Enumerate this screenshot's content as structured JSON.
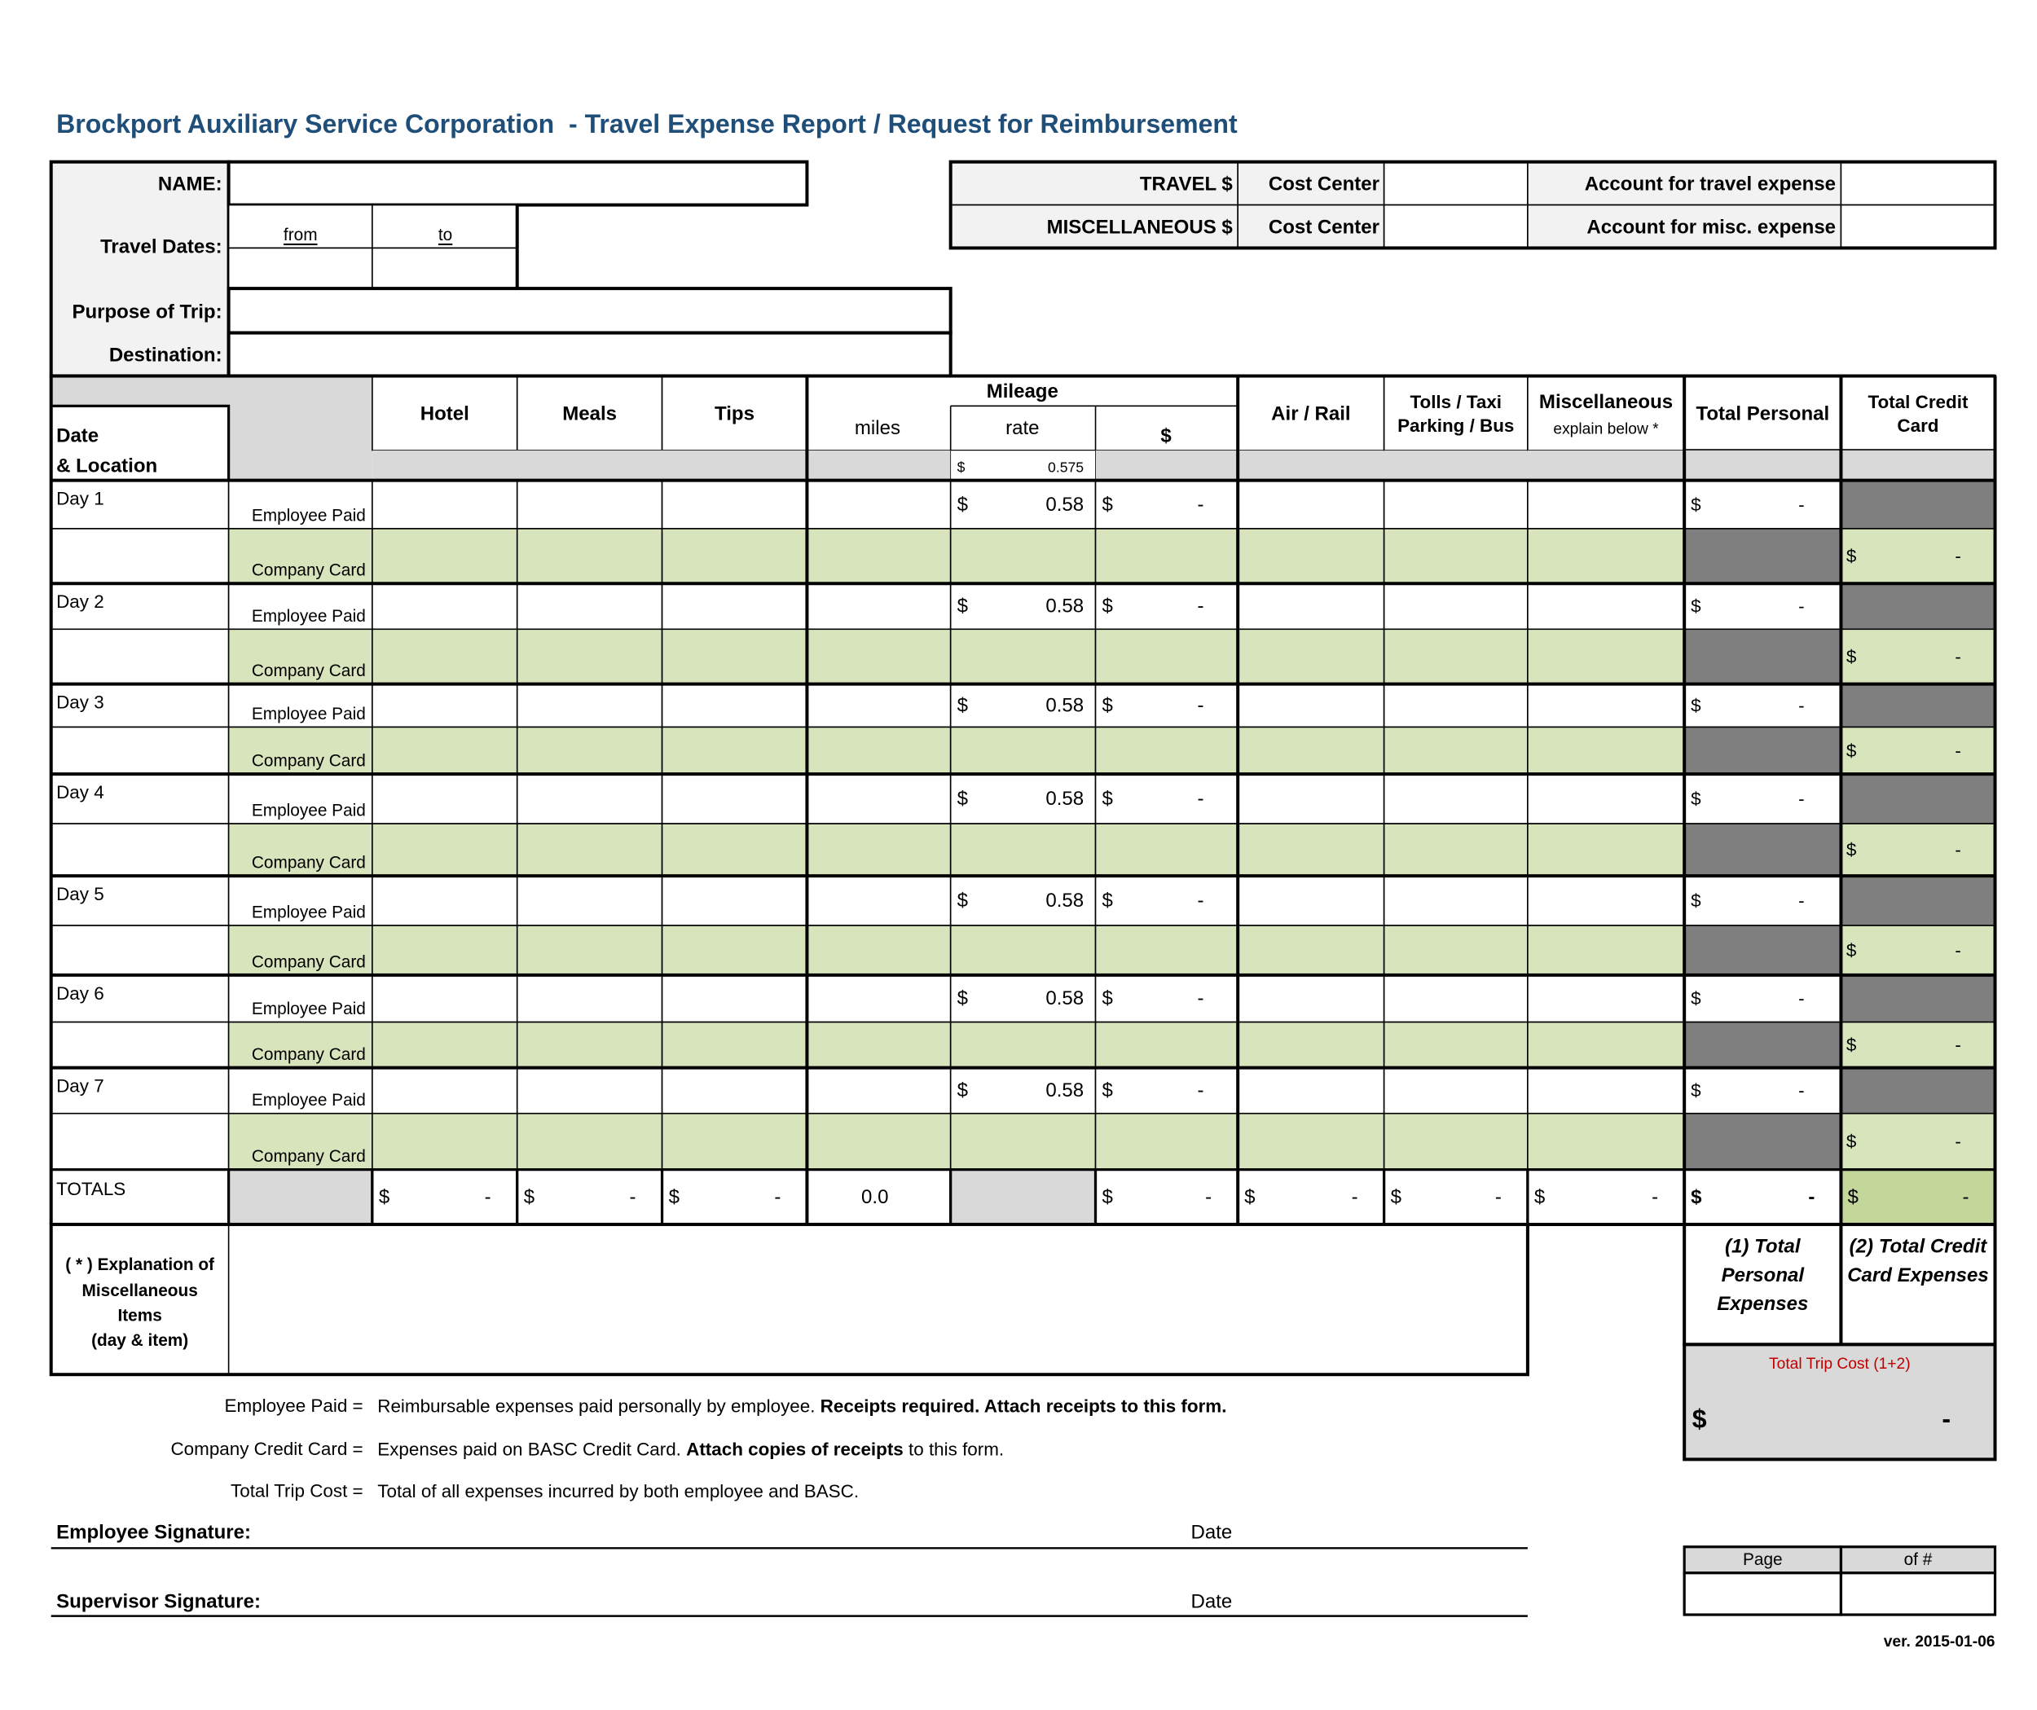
{
  "title": "Brockport Auxiliary Service Corporation  - Travel Expense Report / Request for Reimbursement",
  "header": {
    "name_label": "NAME:",
    "travel_dates_label": "Travel Dates:",
    "from": "from",
    "to": "to",
    "purpose_label": "Purpose of Trip:",
    "destination_label": "Destination:",
    "travel_label": "TRAVEL $",
    "misc_label": "MISCELLANEOUS $",
    "cost_center_travel": "Cost Center",
    "cost_center_misc": "Cost Center",
    "account_travel": "Account for travel expense",
    "account_misc": "Account for misc. expense"
  },
  "table": {
    "columns": {
      "date": "Date",
      "location": "& Location",
      "hotel": "Hotel",
      "meals": "Meals",
      "tips": "Tips",
      "mileage": "Mileage",
      "miles": "miles",
      "rate": "rate",
      "amount": "$",
      "air": "Air / Rail",
      "tolls_1": "Tolls / Taxi",
      "tolls_2": "Parking / Bus",
      "misc_1": "Miscellaneous",
      "misc_2": "explain below *",
      "total_personal": "Total Personal",
      "total_credit_1": "Total Credit",
      "total_credit_2": "Card"
    },
    "mileage_rate": {
      "currency": "$",
      "value": "0.575"
    },
    "days": [
      {
        "label": "Day 1",
        "employee": {
          "label": "Employee Paid",
          "rate": [
            "$",
            "0.58"
          ],
          "mileage_amount": [
            "$",
            "-"
          ],
          "total_personal": [
            "$",
            "-"
          ]
        },
        "company": {
          "label": "Company Card",
          "total_credit": [
            "$",
            "-"
          ]
        }
      },
      {
        "label": "Day 2",
        "employee": {
          "label": "Employee Paid",
          "rate": [
            "$",
            "0.58"
          ],
          "mileage_amount": [
            "$",
            "-"
          ],
          "total_personal": [
            "$",
            "-"
          ]
        },
        "company": {
          "label": "Company Card",
          "total_credit": [
            "$",
            "-"
          ]
        }
      },
      {
        "label": "Day 3",
        "employee": {
          "label": "Employee Paid",
          "rate": [
            "$",
            "0.58"
          ],
          "mileage_amount": [
            "$",
            "-"
          ],
          "total_personal": [
            "$",
            "-"
          ]
        },
        "company": {
          "label": "Company Card",
          "total_credit": [
            "$",
            "-"
          ]
        }
      },
      {
        "label": "Day 4",
        "employee": {
          "label": "Employee Paid",
          "rate": [
            "$",
            "0.58"
          ],
          "mileage_amount": [
            "$",
            "-"
          ],
          "total_personal": [
            "$",
            "-"
          ]
        },
        "company": {
          "label": "Company Card",
          "total_credit": [
            "$",
            "-"
          ]
        }
      },
      {
        "label": "Day 5",
        "employee": {
          "label": "Employee Paid",
          "rate": [
            "$",
            "0.58"
          ],
          "mileage_amount": [
            "$",
            "-"
          ],
          "total_personal": [
            "$",
            "-"
          ]
        },
        "company": {
          "label": "Company Card",
          "total_credit": [
            "$",
            "-"
          ]
        }
      },
      {
        "label": "Day 6",
        "employee": {
          "label": "Employee Paid",
          "rate": [
            "$",
            "0.58"
          ],
          "mileage_amount": [
            "$",
            "-"
          ],
          "total_personal": [
            "$",
            "-"
          ]
        },
        "company": {
          "label": "Company Card",
          "total_credit": [
            "$",
            "-"
          ]
        }
      },
      {
        "label": "Day 7",
        "employee": {
          "label": "Employee Paid",
          "rate": [
            "$",
            "0.58"
          ],
          "mileage_amount": [
            "$",
            "-"
          ],
          "total_personal": [
            "$",
            "-"
          ]
        },
        "company": {
          "label": "Company Card",
          "total_credit": [
            "$",
            "-"
          ]
        }
      }
    ],
    "totals": {
      "label": "TOTALS",
      "hotel": [
        "$",
        "-"
      ],
      "meals": [
        "$",
        "-"
      ],
      "tips": [
        "$",
        "-"
      ],
      "miles": "0.0",
      "mileage_amount": [
        "$",
        "-"
      ],
      "air": [
        "$",
        "-"
      ],
      "tolls": [
        "$",
        "-"
      ],
      "misc": [
        "$",
        "-"
      ],
      "total_personal": [
        "$",
        "-"
      ],
      "total_credit": [
        "$",
        "-"
      ]
    }
  },
  "explanation": [
    "( * ) Explanation of",
    "Miscellaneous",
    "Items",
    "(day & item)"
  ],
  "summary": {
    "personal": [
      "(1) Total",
      "Personal",
      "Expenses"
    ],
    "credit": [
      "(2) Total Credit",
      "Card Expenses"
    ],
    "trip_cost_label": "Total Trip Cost (1+2)",
    "trip_cost": [
      "$",
      "-"
    ]
  },
  "notes": [
    {
      "term": "Employee Paid =",
      "parts": [
        {
          "text": "Reimbursable expenses paid personally by employee. ",
          "bold": false
        },
        {
          "text": "Receipts required. Attach receipts to this form.",
          "bold": true
        }
      ]
    },
    {
      "term": "Company Credit Card =",
      "parts": [
        {
          "text": "Expenses paid on BASC Credit Card. ",
          "bold": false
        },
        {
          "text": "Attach copies of receipts",
          "bold": true
        },
        {
          "text": " to this form.",
          "bold": false
        }
      ]
    },
    {
      "term": "Total Trip Cost =",
      "parts": [
        {
          "text": "Total of all expenses incurred by both employee and BASC.",
          "bold": false
        }
      ]
    }
  ],
  "signatures": {
    "employee": "Employee Signature:",
    "employee_date": "Date",
    "supervisor": "Supervisor Signature:",
    "supervisor_date": "Date"
  },
  "page_box": {
    "page": "Page",
    "of": "of #"
  },
  "version": "ver. 2015-01-06"
}
